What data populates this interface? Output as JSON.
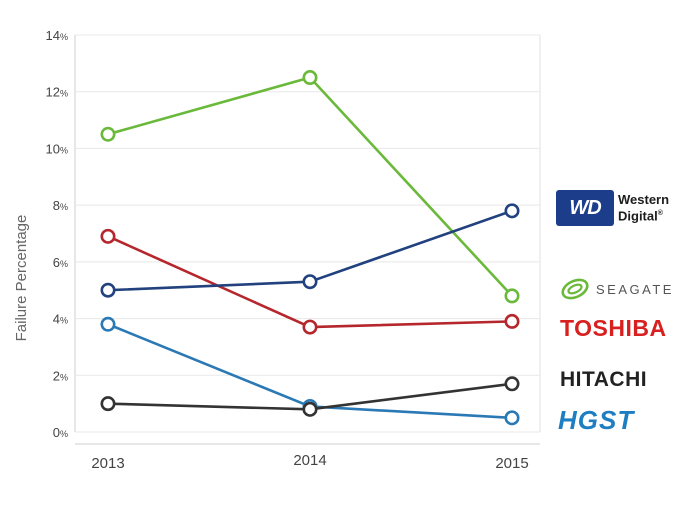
{
  "chart_data": {
    "type": "line",
    "categories": [
      "2013",
      "2014",
      "2015"
    ],
    "ylabel": "Failure Percentage",
    "ylim": [
      0,
      14
    ],
    "yticks": [
      {
        "num": "14",
        "unit": "%"
      },
      {
        "num": "12",
        "unit": "%"
      },
      {
        "num": "10",
        "unit": "%"
      },
      {
        "num": "8",
        "unit": "%"
      },
      {
        "num": "6",
        "unit": "%"
      },
      {
        "num": "4",
        "unit": "%"
      },
      {
        "num": "2",
        "unit": "%"
      },
      {
        "num": "0",
        "unit": "%"
      }
    ],
    "grid": "horizontal",
    "legend": "right",
    "series": [
      {
        "color": "#6ab93a",
        "values": [
          10.5,
          12.5,
          4.8
        ]
      },
      {
        "color": "#b5272c",
        "values": [
          6.9,
          3.7,
          3.9
        ]
      },
      {
        "color": "#22417f",
        "values": [
          5.0,
          5.3,
          7.8
        ]
      },
      {
        "color": "#2a79b5",
        "values": [
          3.8,
          0.9,
          0.5
        ]
      },
      {
        "color": "#333333",
        "values": [
          1.0,
          0.8,
          1.7
        ]
      }
    ]
  },
  "legend_logos": {
    "western_digital": {
      "mark": "WD",
      "line1": "Western",
      "line2": "Digital",
      "reg": "®",
      "color": "#1b3d8a"
    },
    "seagate": {
      "text": "SEAGATE",
      "color": "#6ab93a"
    },
    "toshiba": {
      "text": "TOSHIBA",
      "color": "#d7201f"
    },
    "hitachi": {
      "text": "HITACHI",
      "color": "#222222"
    },
    "hgst": {
      "text": "HGST",
      "color": "#1e7ec2"
    }
  }
}
